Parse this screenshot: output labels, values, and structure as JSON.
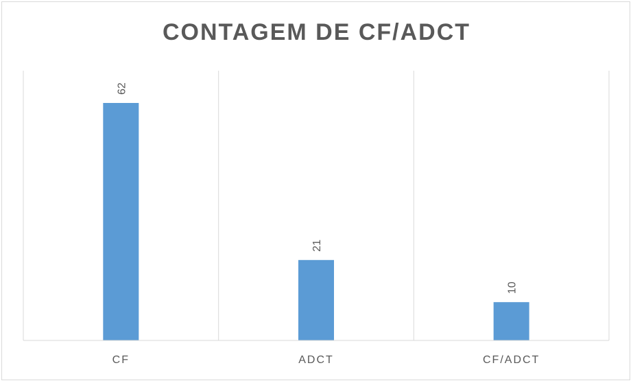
{
  "chart_data": {
    "type": "bar",
    "title": "CONTAGEM DE CF/ADCT",
    "categories": [
      "CF",
      "ADCT",
      "CF/ADCT"
    ],
    "values": [
      62,
      21,
      10
    ],
    "xlabel": "",
    "ylabel": "",
    "ylim": [
      0,
      62
    ],
    "grid": "vertical-separators",
    "legend": "none",
    "data_labels": true,
    "bar_color": "#5b9bd5",
    "gridline_color": "#d9d9d9",
    "text_color": "#595959"
  }
}
